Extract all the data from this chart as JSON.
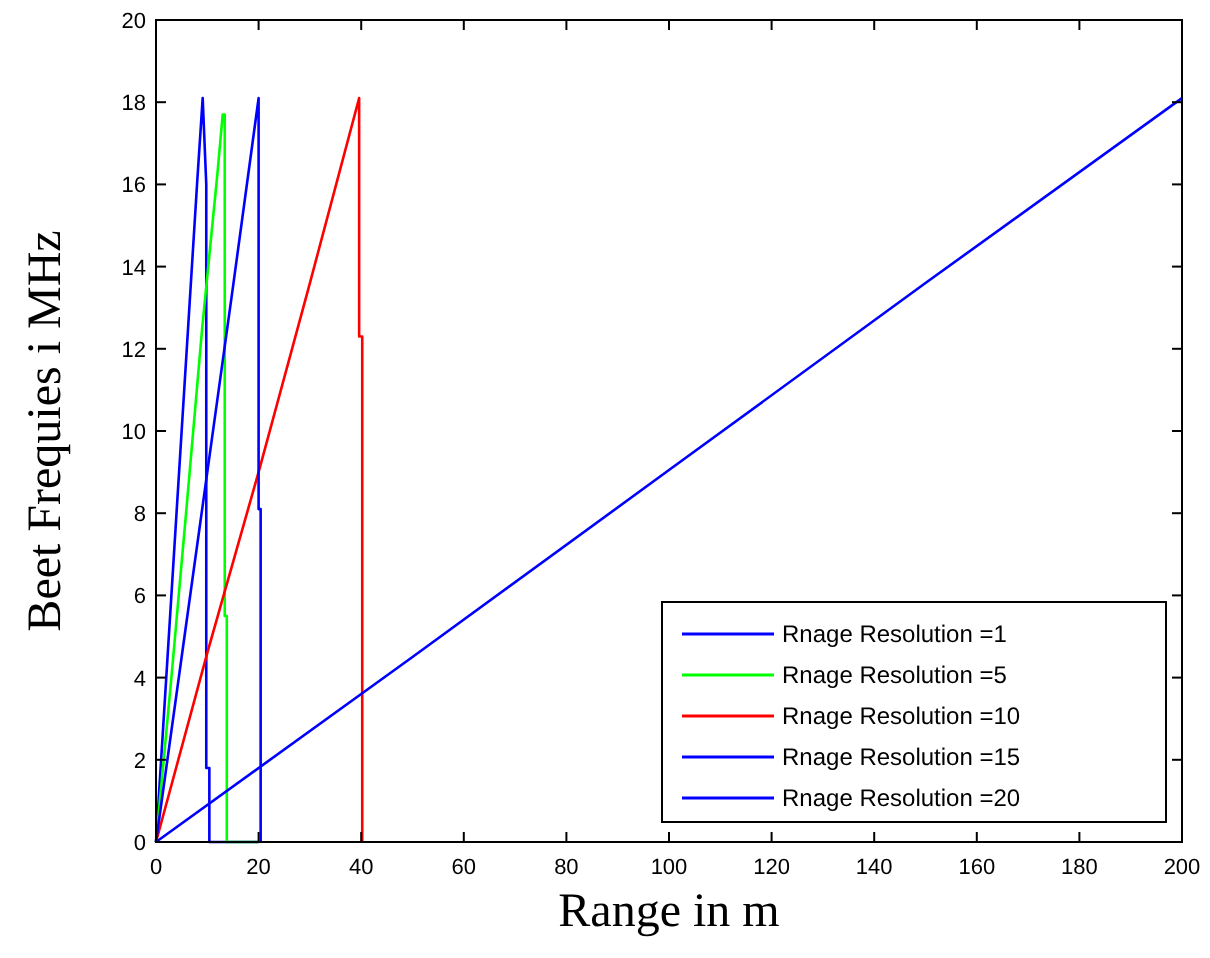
{
  "chart_data": {
    "type": "line",
    "xlabel": "Range in m",
    "ylabel": "Beet Frequies i MHz",
    "xlim": [
      0,
      200
    ],
    "ylim": [
      0,
      20
    ],
    "xticks": [
      0,
      20,
      40,
      60,
      80,
      100,
      120,
      140,
      160,
      180,
      200
    ],
    "yticks": [
      0,
      2,
      4,
      6,
      8,
      10,
      12,
      14,
      16,
      18,
      20
    ],
    "grid": false,
    "legend": "bottom right",
    "line_style": "solid",
    "series": [
      {
        "name": "Rnage Resolution =1",
        "color": "#0000ff",
        "x": [
          0,
          2,
          4,
          6,
          8,
          9.1,
          9.8,
          9.8,
          10.4,
          10.4,
          20
        ],
        "values": [
          0,
          4,
          8,
          12,
          16,
          18.1,
          16,
          1.8,
          1.8,
          0,
          0
        ]
      },
      {
        "name": "Rnage Resolution =5",
        "color": "#00ff00",
        "x": [
          0,
          3,
          6,
          9,
          12,
          13,
          13.4,
          13.4,
          13.8,
          13.8,
          20
        ],
        "values": [
          0,
          4,
          8.2,
          12.5,
          16.3,
          17.7,
          17.7,
          5.5,
          5.5,
          0,
          0
        ]
      },
      {
        "name": "Rnage Resolution =10",
        "color": "#ff0000",
        "x": [
          0,
          10,
          20,
          30,
          39.6,
          39.6,
          40.2,
          40.2
        ],
        "values": [
          0,
          4.6,
          9,
          13.6,
          18.1,
          12.3,
          12.3,
          0
        ]
      },
      {
        "name": "Rnage Resolution =15",
        "color": "#0000ff",
        "x": [
          0,
          5,
          10,
          15,
          20,
          20,
          20.4,
          20.4
        ],
        "values": [
          0,
          4.5,
          9,
          13.5,
          18.1,
          8.1,
          8.1,
          0
        ]
      },
      {
        "name": "Rnage Resolution =20",
        "color": "#0000ff",
        "x": [
          0,
          50,
          100,
          150,
          200
        ],
        "values": [
          0,
          4.5,
          9.05,
          13.6,
          18.1
        ]
      }
    ]
  }
}
